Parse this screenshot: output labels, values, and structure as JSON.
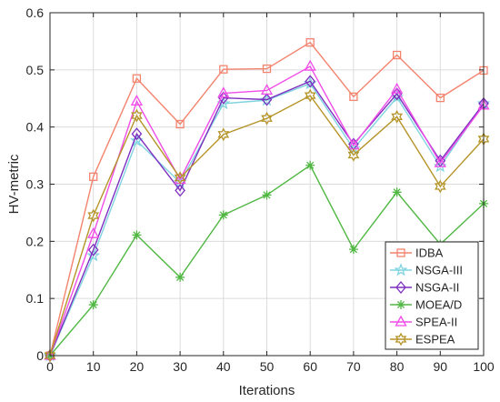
{
  "chart_data": {
    "type": "line",
    "title": "",
    "xlabel": "Iterations",
    "ylabel": "HV-metric",
    "xlim": [
      0,
      100
    ],
    "ylim": [
      0,
      0.6
    ],
    "xticks": [
      0,
      10,
      20,
      30,
      40,
      50,
      60,
      70,
      80,
      90,
      100
    ],
    "yticks": [
      0,
      0.1,
      0.2,
      0.3,
      0.4,
      0.5,
      0.6
    ],
    "xtick_labels": [
      "0",
      "10",
      "20",
      "30",
      "40",
      "50",
      "60",
      "70",
      "80",
      "90",
      "100"
    ],
    "ytick_labels": [
      "0",
      "0.1",
      "0.2",
      "0.3",
      "0.4",
      "0.5",
      "0.6"
    ],
    "grid": true,
    "legend_position": "bottom-right",
    "x": [
      0,
      10,
      20,
      30,
      40,
      50,
      60,
      70,
      80,
      90,
      100
    ],
    "series": [
      {
        "name": "IDBA",
        "color": "#f4836e",
        "marker": "square",
        "values": [
          0.0,
          0.313,
          0.485,
          0.405,
          0.501,
          0.502,
          0.548,
          0.453,
          0.526,
          0.451,
          0.499
        ]
      },
      {
        "name": "NSGA-III",
        "color": "#80d4e0",
        "marker": "star",
        "values": [
          0.0,
          0.175,
          0.376,
          0.303,
          0.441,
          0.447,
          0.476,
          0.362,
          0.452,
          0.331,
          0.441
        ]
      },
      {
        "name": "NSGA-II",
        "color": "#7e2fc0",
        "marker": "diamond",
        "values": [
          0.0,
          0.185,
          0.388,
          0.289,
          0.451,
          0.448,
          0.48,
          0.37,
          0.458,
          0.341,
          0.441
        ]
      },
      {
        "name": "MOEA/D",
        "color": "#50b743",
        "marker": "asterisk",
        "values": [
          0.0,
          0.089,
          0.211,
          0.137,
          0.246,
          0.281,
          0.333,
          0.186,
          0.286,
          0.195,
          0.266
        ]
      },
      {
        "name": "SPEA-II",
        "color": "#f04ce8",
        "marker": "triangle",
        "values": [
          0.0,
          0.213,
          0.445,
          0.308,
          0.459,
          0.464,
          0.506,
          0.368,
          0.466,
          0.337,
          0.438
        ]
      },
      {
        "name": "ESPEA",
        "color": "#b59428",
        "marker": "hexagram",
        "values": [
          0.0,
          0.245,
          0.42,
          0.311,
          0.387,
          0.415,
          0.455,
          0.351,
          0.418,
          0.296,
          0.379
        ]
      }
    ]
  }
}
